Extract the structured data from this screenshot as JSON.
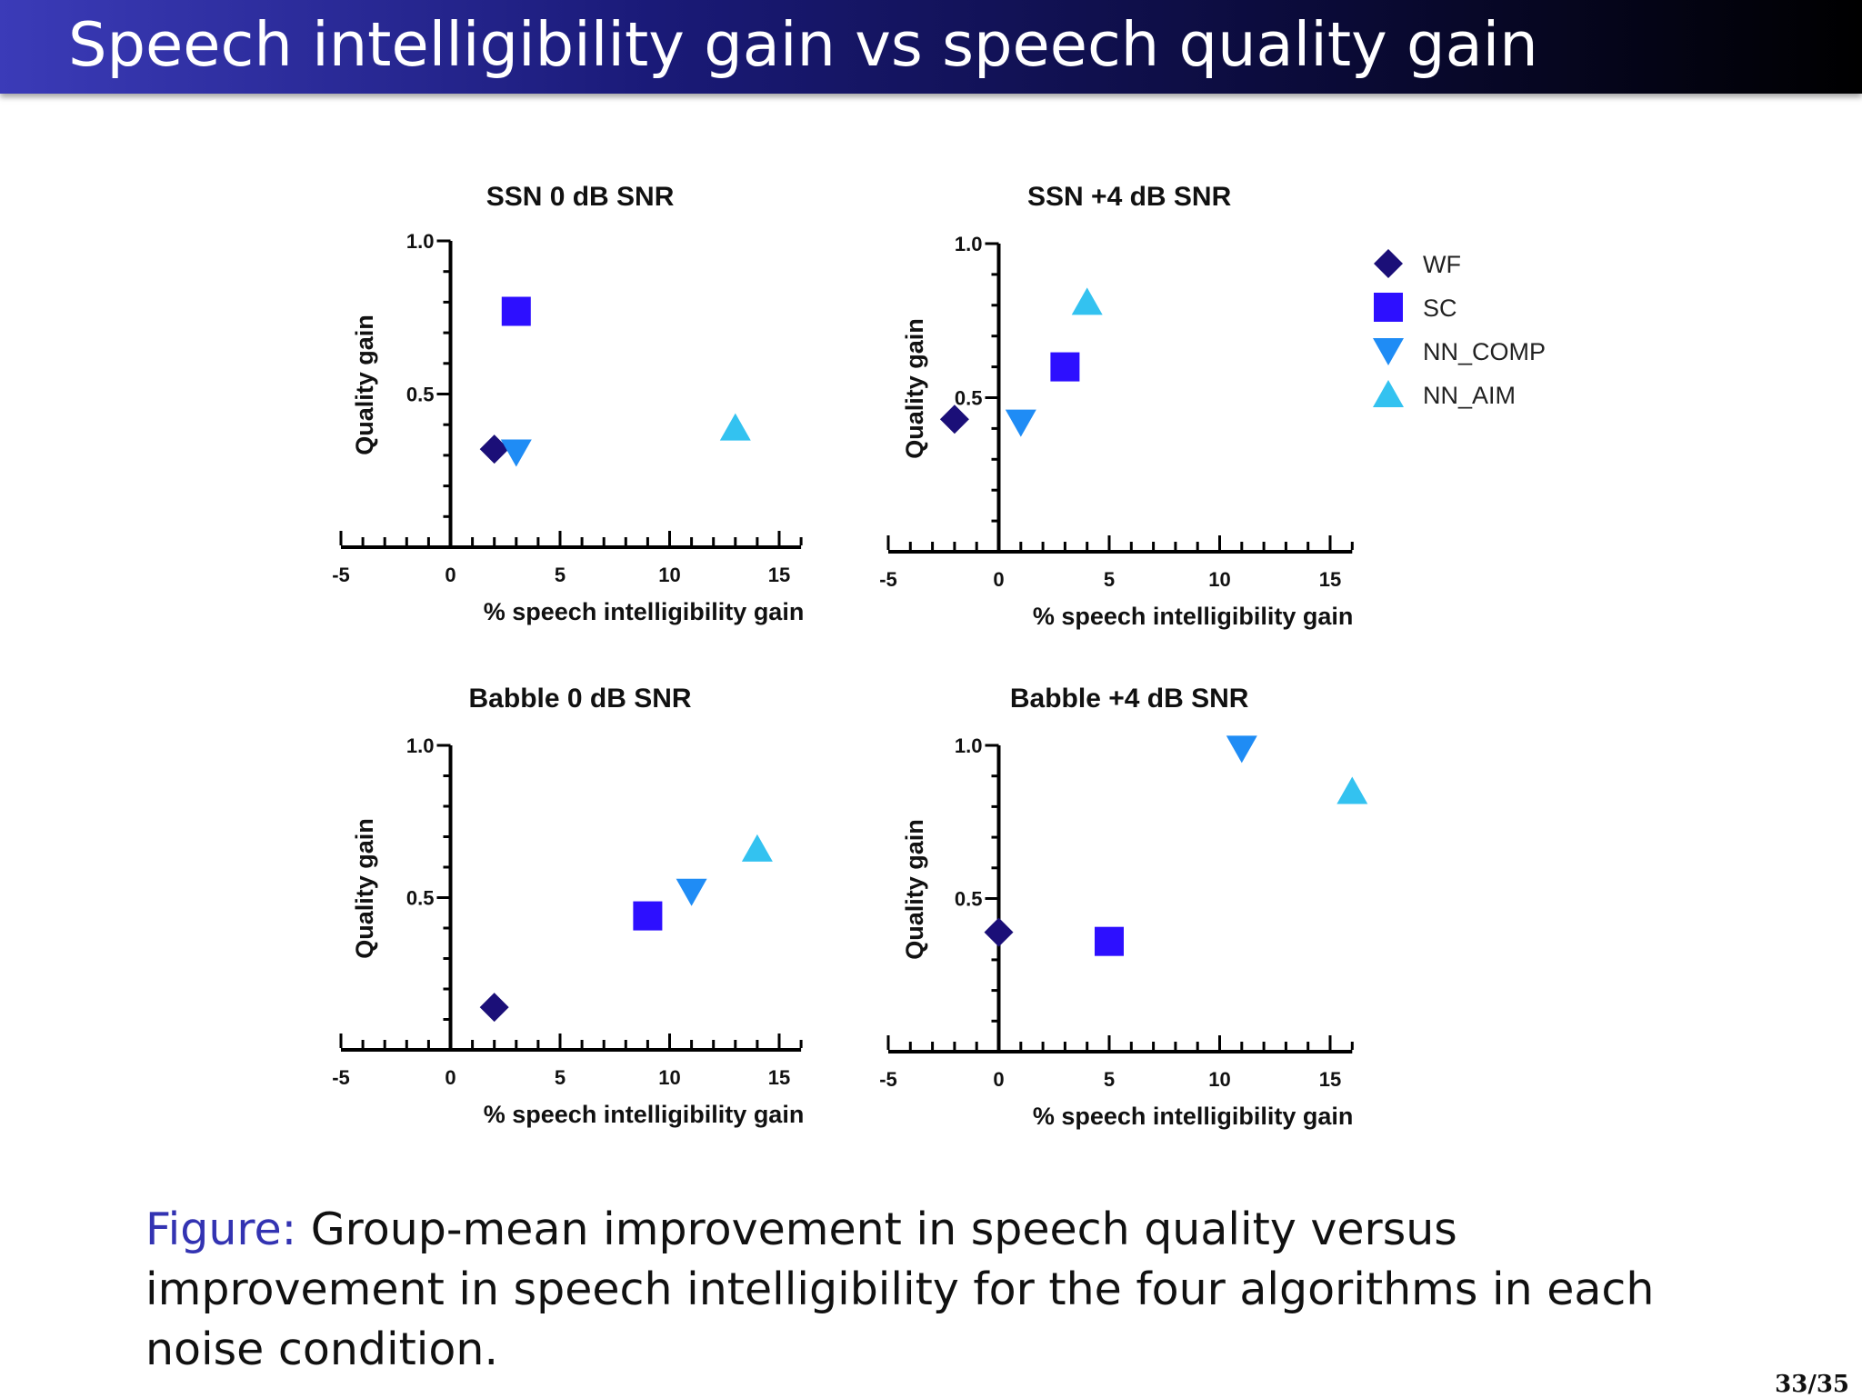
{
  "slide": {
    "title": "Speech intelligibility gain vs speech quality gain",
    "caption_lead": "Figure:",
    "caption_text": "Group-mean improvement in speech quality versus improvement in speech intelligibility for the four algorithms in each noise condition.",
    "page_number": "33/35",
    "colors": {
      "title_bar_start": "#3b3bb8",
      "title_bar_end": "#000000",
      "caption_lead": "#3333b2"
    }
  },
  "legend": [
    {
      "name": "WF",
      "marker": "diamond",
      "color": "#1b0f78"
    },
    {
      "name": "SC",
      "marker": "square",
      "color": "#2d0fff"
    },
    {
      "name": "NN_COMP",
      "marker": "triangle-down",
      "color": "#1f8cf5"
    },
    {
      "name": "NN_AIM",
      "marker": "triangle-up",
      "color": "#33c2f0"
    }
  ],
  "chart_data": [
    {
      "type": "scatter",
      "title": "SSN 0 dB SNR",
      "xlabel": "% speech intelligibility gain",
      "ylabel": "Quality gain",
      "xlim": [
        -5,
        16
      ],
      "ylim": [
        0,
        1.0
      ],
      "xticks": [
        -5,
        0,
        5,
        10,
        15
      ],
      "yticks": [
        0.5,
        1.0
      ],
      "ytick_labels": [
        "0.5",
        "1.0"
      ],
      "grid": false,
      "legend": "right",
      "series": [
        {
          "name": "WF",
          "x": [
            2
          ],
          "y": [
            0.32
          ]
        },
        {
          "name": "SC",
          "x": [
            3
          ],
          "y": [
            0.77
          ]
        },
        {
          "name": "NN_COMP",
          "x": [
            3
          ],
          "y": [
            0.31
          ]
        },
        {
          "name": "NN_AIM",
          "x": [
            13
          ],
          "y": [
            0.39
          ]
        }
      ]
    },
    {
      "type": "scatter",
      "title": "SSN +4 dB SNR",
      "xlabel": "% speech intelligibility gain",
      "ylabel": "Quality gain",
      "xlim": [
        -5,
        16
      ],
      "ylim": [
        0,
        1.0
      ],
      "xticks": [
        -5,
        0,
        5,
        10,
        15
      ],
      "yticks": [
        0.5,
        1.0
      ],
      "ytick_labels": [
        "0.5",
        "1.0"
      ],
      "grid": false,
      "legend": "right",
      "series": [
        {
          "name": "WF",
          "x": [
            -2
          ],
          "y": [
            0.43
          ]
        },
        {
          "name": "SC",
          "x": [
            3
          ],
          "y": [
            0.6
          ]
        },
        {
          "name": "NN_COMP",
          "x": [
            1
          ],
          "y": [
            0.42
          ]
        },
        {
          "name": "NN_AIM",
          "x": [
            4
          ],
          "y": [
            0.81
          ]
        }
      ]
    },
    {
      "type": "scatter",
      "title": "Babble 0 dB SNR",
      "xlabel": "% speech intelligibility gain",
      "ylabel": "Quality gain",
      "xlim": [
        -5,
        16
      ],
      "ylim": [
        0,
        1.0
      ],
      "xticks": [
        -5,
        0,
        5,
        10,
        15
      ],
      "yticks": [
        0.5,
        1.0
      ],
      "ytick_labels": [
        "0.5",
        "1.0"
      ],
      "grid": false,
      "legend": "right",
      "series": [
        {
          "name": "WF",
          "x": [
            2
          ],
          "y": [
            0.14
          ]
        },
        {
          "name": "SC",
          "x": [
            9
          ],
          "y": [
            0.44
          ]
        },
        {
          "name": "NN_COMP",
          "x": [
            11
          ],
          "y": [
            0.52
          ]
        },
        {
          "name": "NN_AIM",
          "x": [
            14
          ],
          "y": [
            0.66
          ]
        }
      ]
    },
    {
      "type": "scatter",
      "title": "Babble +4 dB SNR",
      "xlabel": "% speech intelligibility gain",
      "ylabel": "Quality gain",
      "xlim": [
        -5,
        16
      ],
      "ylim": [
        0,
        1.0
      ],
      "xticks": [
        -5,
        0,
        5,
        10,
        15
      ],
      "yticks": [
        0.5,
        1.0
      ],
      "ytick_labels": [
        "0.5",
        "1.0"
      ],
      "grid": false,
      "legend": "right",
      "series": [
        {
          "name": "WF",
          "x": [
            0
          ],
          "y": [
            0.39
          ]
        },
        {
          "name": "SC",
          "x": [
            5
          ],
          "y": [
            0.36
          ]
        },
        {
          "name": "NN_COMP",
          "x": [
            11
          ],
          "y": [
            0.99
          ]
        },
        {
          "name": "NN_AIM",
          "x": [
            16
          ],
          "y": [
            0.85
          ]
        }
      ]
    }
  ]
}
